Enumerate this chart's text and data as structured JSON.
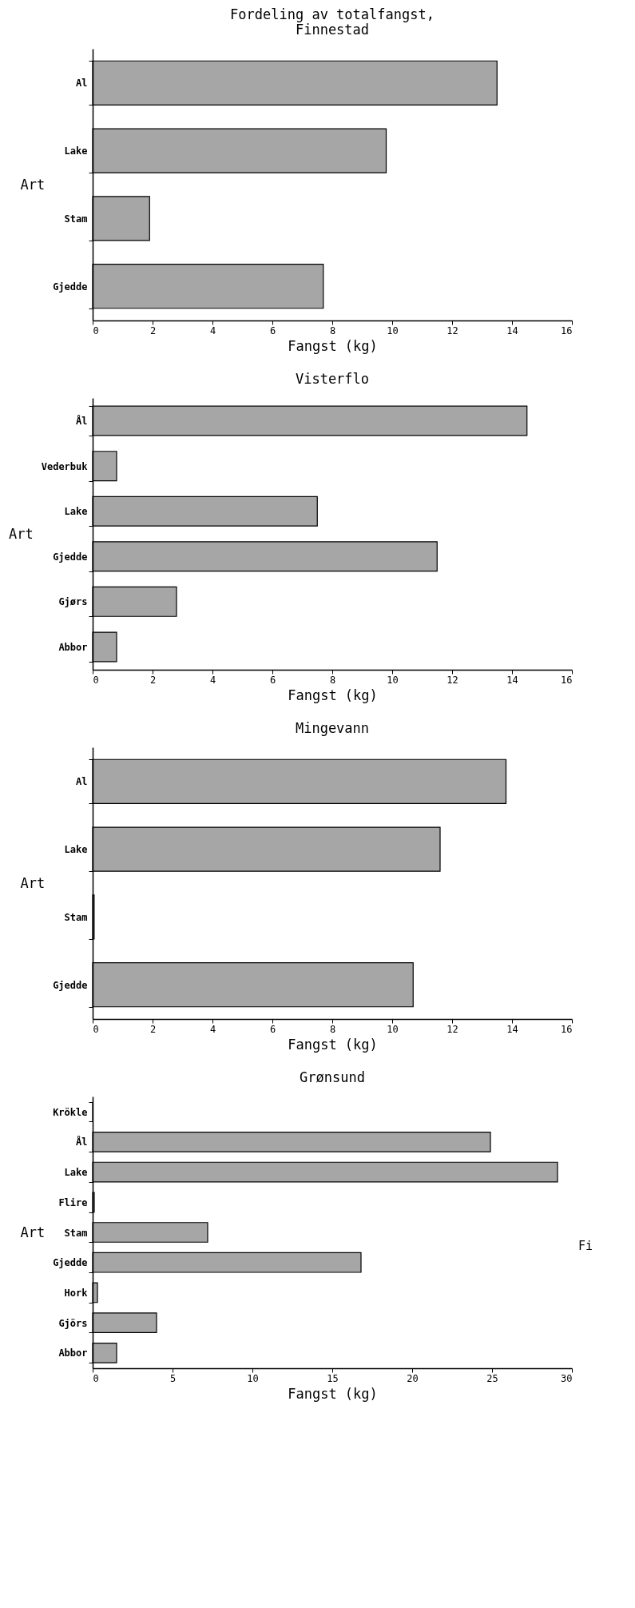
{
  "chart_data": [
    {
      "type": "bar",
      "orientation": "horizontal",
      "title": "Fordeling av totalfangst,\nFinnestad",
      "xlabel": "Fangst (kg)",
      "ylabel": "Art",
      "categories": [
        "Al",
        "Lake",
        "Stam",
        "Gjedde"
      ],
      "values": [
        13.5,
        9.8,
        1.9,
        7.7
      ],
      "color": "#000000",
      "xlim": [
        0,
        16
      ],
      "xticks": [
        0,
        2,
        4,
        6,
        8,
        10,
        12,
        14,
        16
      ],
      "grid": false
    },
    {
      "type": "bar",
      "orientation": "horizontal",
      "title": "Visterflo",
      "xlabel": "Fangst (kg)",
      "ylabel": "Art",
      "categories": [
        "Ål",
        "Vederbuk",
        "Lake",
        "Gjedde",
        "Gjørs",
        "Abbor"
      ],
      "values": [
        14.5,
        0.8,
        7.5,
        11.5,
        2.8,
        0.8
      ],
      "color": "#000000",
      "xlim": [
        0,
        16
      ],
      "xticks": [
        0,
        2,
        4,
        6,
        8,
        10,
        12,
        14,
        16
      ],
      "grid": false
    },
    {
      "type": "bar",
      "orientation": "horizontal",
      "title": "Mingevann",
      "xlabel": "Fangst (kg)",
      "ylabel": "Art",
      "categories": [
        "Al",
        "Lake",
        "Stam",
        "Gjedde"
      ],
      "values": [
        13.8,
        11.6,
        0.05,
        10.7
      ],
      "color": "#000000",
      "xlim": [
        0,
        16
      ],
      "xticks": [
        0,
        2,
        4,
        6,
        8,
        10,
        12,
        14,
        16
      ],
      "grid": false
    },
    {
      "type": "bar",
      "orientation": "horizontal",
      "title": "Grønsund",
      "xlabel": "Fangst (kg)",
      "ylabel": "Art",
      "categories": [
        "Krökle",
        "Ål",
        "Lake",
        "Flire",
        "Stam",
        "Gjedde",
        "Hork",
        "Gjörs",
        "Abbor"
      ],
      "values": [
        0,
        24.9,
        29.1,
        0.1,
        7.2,
        16.8,
        0.3,
        4.0,
        1.5
      ],
      "color": "#000000",
      "xlim": [
        0,
        30
      ],
      "xticks": [
        0,
        5,
        10,
        15,
        20,
        25,
        30
      ],
      "grid": false,
      "annotations": [
        "Fi"
      ]
    }
  ]
}
